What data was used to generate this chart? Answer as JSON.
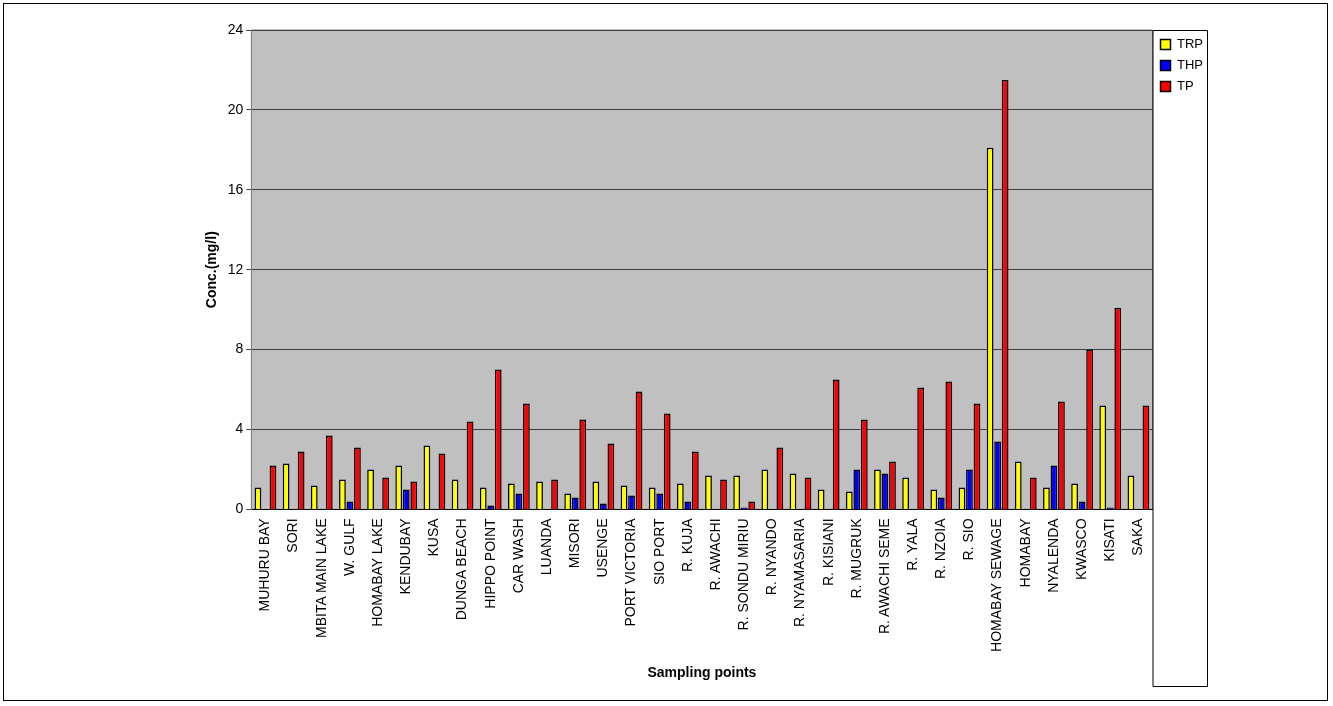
{
  "chart_data": {
    "type": "bar",
    "xlabel": "Sampling points",
    "ylabel": "Conc.(mg/l)",
    "categories": [
      "MUHURU BAY",
      "SORI",
      "MBITA MAIN LAKE",
      "W. GULF",
      "HOMABAY LAKE",
      "KENDUBAY",
      "KUSA",
      "DUNGA BEACH",
      "HIPPO POINT",
      "CAR WASH",
      "LUANDA",
      "MISORI",
      "USENGE",
      "PORT VICTORIA",
      "SIO PORT",
      "R. KUJA",
      "R. AWACHI",
      "R. SONDU MIRIU",
      "R. NYANDO",
      "R. NYAMASARIA",
      "R. KISIANI",
      "R. MUGRUK",
      "R. AWACHI SEME",
      "R. YALA",
      "R. NZOIA",
      "R. SIO",
      "HOMABAY SEWAGE",
      "HOMABAY",
      "NYALENDA",
      "KWASCO",
      "KISATI",
      "SAKA"
    ],
    "series": [
      {
        "name": "TRP",
        "color": "#ffff00",
        "values": [
          1.1,
          2.3,
          1.2,
          1.5,
          2.0,
          2.2,
          3.2,
          1.5,
          1.1,
          1.3,
          1.4,
          0.8,
          1.4,
          1.2,
          1.1,
          1.3,
          1.7,
          1.7,
          2.0,
          1.8,
          1.0,
          0.9,
          2.0,
          1.6,
          1.0,
          1.1,
          18.1,
          2.4,
          1.1,
          1.3,
          5.2,
          1.7
        ]
      },
      {
        "name": "THP",
        "color": "#0000ff",
        "values": [
          0,
          0,
          0,
          0.4,
          0,
          1.0,
          0,
          0,
          0.2,
          0.8,
          0,
          0.6,
          0.3,
          0.7,
          0.8,
          0.4,
          0,
          0.1,
          0,
          0,
          0,
          2.0,
          1.8,
          0,
          0.6,
          2.0,
          3.4,
          0,
          2.2,
          0.4,
          0.1,
          0
        ]
      },
      {
        "name": "TP",
        "color": "#ff0000",
        "values": [
          2.2,
          2.9,
          3.7,
          3.1,
          1.6,
          1.4,
          2.8,
          4.4,
          7.0,
          5.3,
          1.5,
          4.5,
          3.3,
          5.9,
          4.8,
          2.9,
          1.5,
          0.4,
          3.1,
          1.6,
          6.5,
          4.5,
          2.4,
          6.1,
          6.4,
          5.3,
          21.5,
          1.6,
          5.4,
          8.0,
          10.1,
          5.2
        ]
      }
    ],
    "ylim": [
      0,
      24
    ],
    "yticks": [
      0,
      4,
      8,
      12,
      16,
      20,
      24
    ],
    "grid": "y",
    "legend": "right"
  }
}
